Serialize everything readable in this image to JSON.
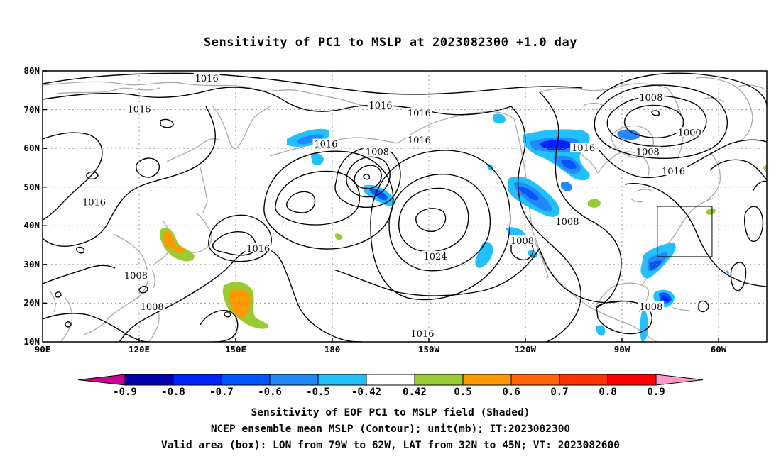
{
  "title": "Sensitivity of PC1 to MSLP at 2023082300 +1.0 day",
  "map": {
    "lat_ticks": [
      "80N",
      "70N",
      "60N",
      "50N",
      "40N",
      "30N",
      "20N",
      "10N"
    ],
    "lon_ticks": [
      "90E",
      "120E",
      "150E",
      "180",
      "150W",
      "120W",
      "90W",
      "60W"
    ],
    "lon_range": [
      "90E",
      "45W"
    ],
    "lat_range": [
      "10N",
      "80N"
    ],
    "grid": "dotted",
    "contour_labels": [
      {
        "text": "1016",
        "lon": 141,
        "lat": 78
      },
      {
        "text": "1016",
        "lon": 120,
        "lat": 70
      },
      {
        "text": "1016",
        "lon": 195,
        "lat": 71
      },
      {
        "text": "1016",
        "lon": 207,
        "lat": 69
      },
      {
        "text": "1016",
        "lon": 178,
        "lat": 61
      },
      {
        "text": "1016",
        "lon": 207,
        "lat": 62
      },
      {
        "text": "1008",
        "lon": 194,
        "lat": 59
      },
      {
        "text": "1016",
        "lon": 106,
        "lat": 46
      },
      {
        "text": "1016",
        "lon": 157,
        "lat": 34
      },
      {
        "text": "1008",
        "lon": 119,
        "lat": 27
      },
      {
        "text": "1008",
        "lon": 124,
        "lat": 19
      },
      {
        "text": "1024",
        "lon": 212,
        "lat": 32
      },
      {
        "text": "1016",
        "lon": 208,
        "lat": 12
      },
      {
        "text": "1008",
        "lon": 279,
        "lat": 73
      },
      {
        "text": "1000",
        "lon": 291,
        "lat": 64
      },
      {
        "text": "1016",
        "lon": 258,
        "lat": 60
      },
      {
        "text": "1008",
        "lon": 278,
        "lat": 59
      },
      {
        "text": "1016",
        "lon": 286,
        "lat": 54
      },
      {
        "text": "1008",
        "lon": 253,
        "lat": 41
      },
      {
        "text": "1008",
        "lon": 239,
        "lat": 36
      },
      {
        "text": "1008",
        "lon": 279,
        "lat": 19
      }
    ],
    "valid_box": {
      "lon_from": "79W",
      "lon_to": "62W",
      "lat_from": "32N",
      "lat_to": "45N"
    }
  },
  "colorbar": {
    "labels": [
      "-0.9",
      "-0.8",
      "-0.7",
      "-0.6",
      "-0.5",
      "-0.42",
      "0.42",
      "0.5",
      "0.6",
      "0.7",
      "0.8",
      "0.9"
    ],
    "colors": [
      "#cc0099",
      "#0000b0",
      "#0022ff",
      "#0055ff",
      "#2288ff",
      "#22c0ff",
      "#ffffff",
      "#99cc33",
      "#ff9900",
      "#ff6600",
      "#ff3300",
      "#ff0000",
      "#ff99cc"
    ]
  },
  "captions": {
    "line1": "Sensitivity of EOF PC1 to MSLP field (Shaded)",
    "line2": "NCEP ensemble mean MSLP (Contour); unit(mb); IT:2023082300",
    "line3": "Valid area (box): LON from 79W to 62W, LAT from 32N to 45N; VT: 2023082600"
  }
}
